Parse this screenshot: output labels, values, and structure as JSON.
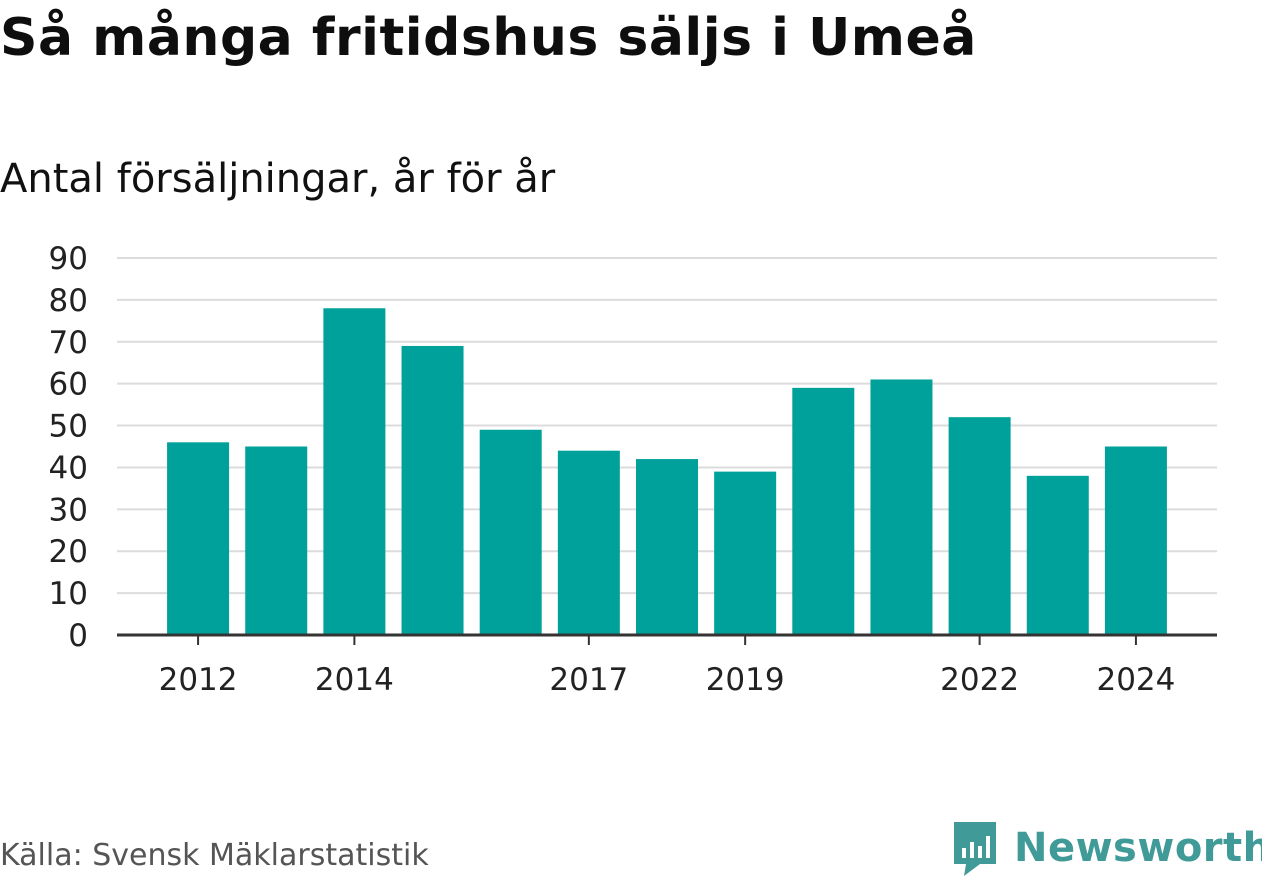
{
  "title": "Så många fritidshus säljs i Umeå",
  "subtitle": "Antal försäljningar, år för år",
  "source": "Källa: Svensk Mäklarstatistik",
  "logo": {
    "text": "Newsworthy",
    "icon": "newsworthy-bar-chart-icon",
    "color": "#3f9a98"
  },
  "chart_data": {
    "type": "bar",
    "categories": [
      "2012",
      "2013",
      "2014",
      "2015",
      "2016",
      "2017",
      "2018",
      "2019",
      "2020",
      "2021",
      "2022",
      "2023",
      "2024"
    ],
    "values": [
      46,
      45,
      78,
      69,
      49,
      44,
      42,
      39,
      59,
      61,
      52,
      38,
      45
    ],
    "x_tick_labels": [
      "2012",
      "2014",
      "2017",
      "2019",
      "2022",
      "2024"
    ],
    "y_ticks": [
      "0",
      "10",
      "20",
      "30",
      "40",
      "50",
      "60",
      "70",
      "80",
      "90"
    ],
    "ylim": [
      0,
      90
    ],
    "grid": true,
    "bar_color": "#00a19a",
    "grid_color": "#dcdcdc",
    "axis_color": "#333333"
  }
}
